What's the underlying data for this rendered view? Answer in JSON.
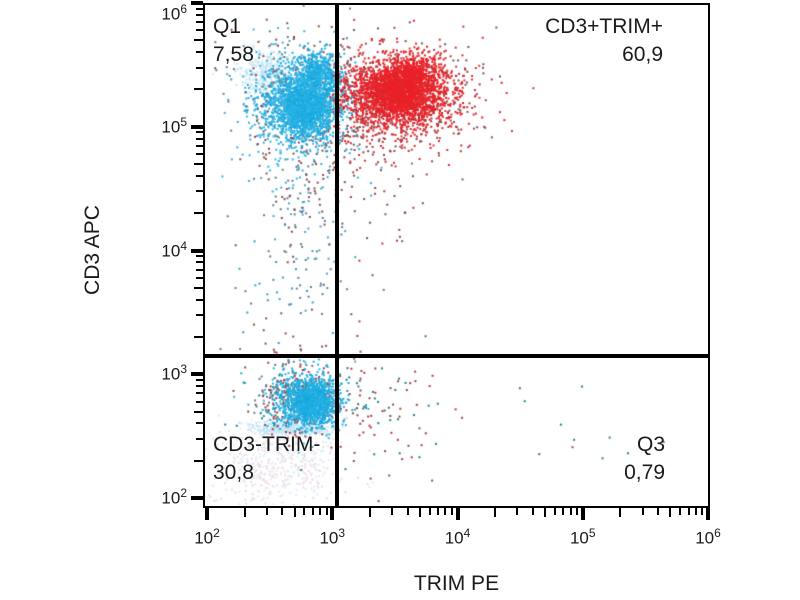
{
  "figure": {
    "background": "#ffffff",
    "x_axis": {
      "label": "TRIM PE",
      "scale": "log",
      "tick_base": "10",
      "decade_exponents": [
        2,
        3,
        4,
        5,
        6
      ]
    },
    "y_axis": {
      "label": "CD3 APC",
      "scale": "log",
      "tick_base": "10",
      "decade_exponents": [
        2,
        3,
        4,
        5,
        6
      ]
    },
    "gates": {
      "x_value": 1100,
      "y_value": 1400,
      "line_color": "#000000"
    },
    "quadrants": {
      "top_left": {
        "name": "Q1",
        "value": "7,58"
      },
      "top_right": {
        "name": "CD3+TRIM+",
        "value": "60,9"
      },
      "bottom_left": {
        "name": "CD3-TRIM-",
        "value": "30,8"
      },
      "bottom_right": {
        "name": "Q3",
        "value": "0,79"
      }
    }
  },
  "chart_data": {
    "type": "scatter",
    "subtype": "flow-cytometry-quadrant-dot-plot",
    "title": "",
    "xlabel": "TRIM PE",
    "ylabel": "CD3 APC",
    "x_scale": "log10",
    "y_scale": "log10",
    "xlim": [
      93,
      1000000
    ],
    "ylim": [
      83,
      1000000
    ],
    "grid": false,
    "legend": false,
    "quadrant_gates": {
      "x": 1100,
      "y": 1400
    },
    "quadrant_stats": [
      {
        "quadrant": "top_left",
        "label": "Q1",
        "percent": 7.58,
        "percent_text": "7,58"
      },
      {
        "quadrant": "top_right",
        "label": "CD3+TRIM+",
        "percent": 60.9,
        "percent_text": "60,9"
      },
      {
        "quadrant": "bottom_left",
        "label": "CD3-TRIM-",
        "percent": 30.8,
        "percent_text": "30,8"
      },
      {
        "quadrant": "bottom_right",
        "label": "Q3",
        "percent": 0.79,
        "percent_text": "0,79"
      }
    ],
    "palette": {
      "cyan_population": "#29b3e3",
      "red_population": "#e4252b",
      "dark_fringe": "#8e4a4e",
      "teal_fringe": "#1f7f93",
      "pale_density": "#cfe8f5"
    },
    "populations": [
      {
        "name": "bl-faint-cloud",
        "n": 480,
        "cx": 2.55,
        "cy": 2.27,
        "sx": 0.3,
        "sy": 0.17,
        "colors": [
          "#f2dde0",
          "#e2ecf4",
          "#ead9e6",
          "#dceef8"
        ]
      },
      {
        "name": "bl-pale-strip",
        "n": 320,
        "cx": 2.64,
        "cy": 2.565,
        "sx": 0.155,
        "sy": 0.03,
        "colors": [
          "#bfe2f2",
          "#cde9f6"
        ]
      },
      {
        "name": "tl-pale-patch",
        "n": 380,
        "cx": 2.47,
        "cy": 5.44,
        "sx": 0.105,
        "sy": 0.085,
        "colors": [
          "#cfe8f5",
          "#dceef8",
          "#bfe3f2"
        ]
      },
      {
        "name": "tl-halo",
        "n": 550,
        "cx": 2.74,
        "cy": 5.16,
        "sx": 0.27,
        "sy": 0.3,
        "colors": [
          "#3fa9d6",
          "#5d8191",
          "#8e4a4e",
          "#28b4e4"
        ]
      },
      {
        "name": "tl-tail",
        "n": 170,
        "cx": 2.78,
        "cy": 4.55,
        "sx": 0.17,
        "sy": 0.45,
        "colors": [
          "#4aa6c9",
          "#5d8191",
          "#8e4a4e"
        ]
      },
      {
        "name": "tl-sparse",
        "n": 70,
        "cx": 2.62,
        "cy": 3.62,
        "sx": 0.3,
        "sy": 0.38,
        "colors": [
          "#5d8191",
          "#8e4a4e",
          "#2aa1c9"
        ]
      },
      {
        "name": "red-halo",
        "n": 650,
        "cx": 3.5,
        "cy": 5.22,
        "sx": 0.34,
        "sy": 0.24,
        "colors": [
          "#c2383f",
          "#8e4a4e",
          "#7a555b",
          "#e4252b"
        ],
        "clip_x_min": 2.93
      },
      {
        "name": "red-tail",
        "n": 90,
        "cx": 3.32,
        "cy": 4.72,
        "sx": 0.26,
        "sy": 0.42,
        "colors": [
          "#8e4a4e",
          "#7a555b",
          "#b03a40"
        ],
        "clip_x_min": 2.95
      },
      {
        "name": "q3-sparse",
        "n": 85,
        "cx": 3.38,
        "cy": 2.7,
        "sx": 0.28,
        "sy": 0.3,
        "colors": [
          "#8e4a4e",
          "#1f7f93",
          "#b03a40"
        ]
      },
      {
        "name": "q3-far-sparse",
        "n": 14,
        "cx": 4.7,
        "cy": 2.55,
        "sx": 0.65,
        "sy": 0.3,
        "colors": [
          "#8e4a4e",
          "#1f7f93"
        ]
      },
      {
        "name": "bl-fringe",
        "n": 470,
        "cx": 2.77,
        "cy": 2.8,
        "sx": 0.2,
        "sy": 0.135,
        "colors": [
          "#b03a40",
          "#1f7f93",
          "#5d8191",
          "#28b4e4",
          "#8e4a4e"
        ]
      },
      {
        "name": "tl-core",
        "n": 1500,
        "cx": 2.76,
        "cy": 5.18,
        "sx": 0.16,
        "sy": 0.15,
        "colors": [
          "#29b3e3",
          "#1ba9e0",
          "#3fbce9"
        ]
      },
      {
        "name": "tl-core-dense",
        "n": 700,
        "cx": 2.8,
        "cy": 5.14,
        "sx": 0.1,
        "sy": 0.1,
        "colors": [
          "#17a8e0",
          "#29b3e3"
        ]
      },
      {
        "name": "tl-upper-lobe",
        "n": 450,
        "cx": 2.89,
        "cy": 5.44,
        "sx": 0.075,
        "sy": 0.085,
        "colors": [
          "#29b3e3",
          "#17a8e0"
        ]
      },
      {
        "name": "red-core",
        "n": 1900,
        "cx": 3.52,
        "cy": 5.26,
        "sx": 0.22,
        "sy": 0.135,
        "colors": [
          "#e4252b",
          "#ea3136",
          "#d81f25"
        ],
        "clip_x_min": 2.98
      },
      {
        "name": "red-core-dense",
        "n": 850,
        "cx": 3.56,
        "cy": 5.28,
        "sx": 0.13,
        "sy": 0.09,
        "colors": [
          "#ef1f26",
          "#e4252b"
        ]
      },
      {
        "name": "red-upper-lobe",
        "n": 420,
        "cx": 3.63,
        "cy": 5.44,
        "sx": 0.11,
        "sy": 0.075,
        "colors": [
          "#e4252b",
          "#ef1f26"
        ]
      },
      {
        "name": "bl-core",
        "n": 1050,
        "cx": 2.82,
        "cy": 2.78,
        "sx": 0.115,
        "sy": 0.105,
        "colors": [
          "#29b3e3",
          "#1ba9e0"
        ]
      },
      {
        "name": "bl-core-dense",
        "n": 420,
        "cx": 2.85,
        "cy": 2.77,
        "sx": 0.07,
        "sy": 0.065,
        "colors": [
          "#17a8e0",
          "#29b3e3"
        ]
      }
    ]
  }
}
